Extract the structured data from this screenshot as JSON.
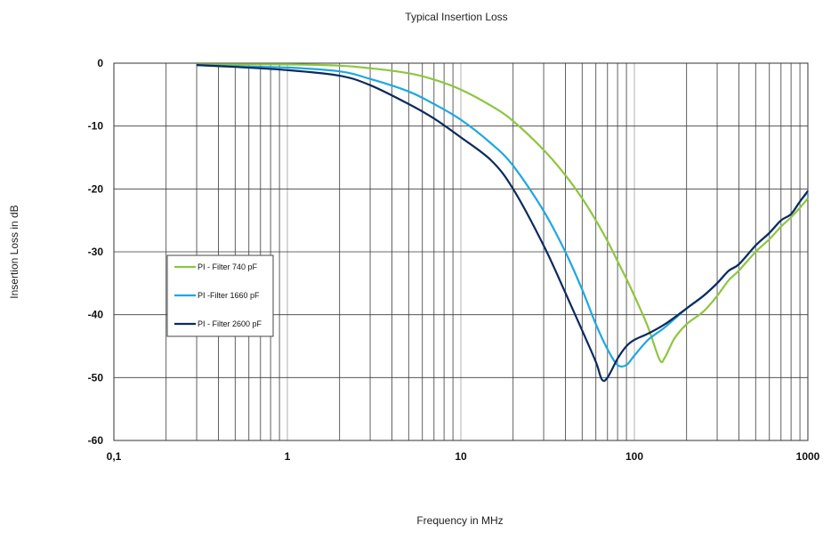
{
  "chart_data": {
    "type": "line",
    "title": "Typical Insertion Loss",
    "xlabel": "Frequency in MHz",
    "ylabel": "Insertion Loss in dB",
    "x_scale": "log",
    "xlim": [
      0.1,
      1000
    ],
    "ylim": [
      -60,
      0
    ],
    "x_ticks": [
      {
        "value": 0.1,
        "label": "0,1"
      },
      {
        "value": 1,
        "label": "1"
      },
      {
        "value": 10,
        "label": "10"
      },
      {
        "value": 100,
        "label": "100"
      },
      {
        "value": 1000,
        "label": "1000"
      }
    ],
    "y_ticks": [
      {
        "value": 0,
        "label": "0"
      },
      {
        "value": -10,
        "label": "-10"
      },
      {
        "value": -20,
        "label": "-20"
      },
      {
        "value": -30,
        "label": "-30"
      },
      {
        "value": -40,
        "label": "-40"
      },
      {
        "value": -50,
        "label": "-50"
      },
      {
        "value": -60,
        "label": "-60"
      }
    ],
    "grid": true,
    "legend_position": "left-middle",
    "series": [
      {
        "name": "PI - Filter 740 pF",
        "color": "#8dc63f",
        "points": [
          [
            0.3,
            -0.2
          ],
          [
            0.5,
            -0.2
          ],
          [
            1,
            -0.2
          ],
          [
            2,
            -0.4
          ],
          [
            3,
            -0.8
          ],
          [
            5,
            -1.6
          ],
          [
            7,
            -2.6
          ],
          [
            10,
            -4.2
          ],
          [
            15,
            -6.8
          ],
          [
            20,
            -9.2
          ],
          [
            30,
            -13.8
          ],
          [
            40,
            -17.8
          ],
          [
            50,
            -21.5
          ],
          [
            60,
            -25
          ],
          [
            70,
            -28.3
          ],
          [
            80,
            -31.5
          ],
          [
            90,
            -34.3
          ],
          [
            100,
            -37
          ],
          [
            120,
            -42
          ],
          [
            140,
            -47.2
          ],
          [
            150,
            -46.8
          ],
          [
            170,
            -43.8
          ],
          [
            200,
            -41.5
          ],
          [
            250,
            -39.5
          ],
          [
            300,
            -37
          ],
          [
            350,
            -34.5
          ],
          [
            400,
            -33
          ],
          [
            500,
            -30
          ],
          [
            600,
            -28
          ],
          [
            700,
            -26
          ],
          [
            800,
            -24.5
          ],
          [
            900,
            -23
          ],
          [
            1000,
            -21.5
          ]
        ]
      },
      {
        "name": "PI -Filter 1660 pF",
        "color": "#1ea7e1",
        "points": [
          [
            0.3,
            -0.3
          ],
          [
            0.5,
            -0.5
          ],
          [
            1,
            -0.7
          ],
          [
            2,
            -1.3
          ],
          [
            3,
            -2.5
          ],
          [
            5,
            -4.5
          ],
          [
            7,
            -6.5
          ],
          [
            10,
            -9
          ],
          [
            15,
            -12.8
          ],
          [
            20,
            -16.3
          ],
          [
            30,
            -23.5
          ],
          [
            40,
            -30
          ],
          [
            50,
            -36
          ],
          [
            60,
            -41.5
          ],
          [
            70,
            -45.5
          ],
          [
            80,
            -48
          ],
          [
            90,
            -48
          ],
          [
            100,
            -46.5
          ],
          [
            120,
            -44
          ],
          [
            150,
            -42
          ],
          [
            200,
            -39
          ],
          [
            250,
            -37
          ],
          [
            300,
            -35
          ],
          [
            350,
            -33
          ],
          [
            400,
            -32
          ],
          [
            500,
            -29
          ],
          [
            600,
            -27
          ],
          [
            700,
            -25
          ],
          [
            800,
            -24
          ],
          [
            900,
            -22
          ],
          [
            1000,
            -20.5
          ]
        ]
      },
      {
        "name": "PI - Filter 2600 pF",
        "color": "#0d2a5e",
        "points": [
          [
            0.3,
            -0.3
          ],
          [
            0.5,
            -0.6
          ],
          [
            1,
            -1.1
          ],
          [
            2,
            -2
          ],
          [
            3,
            -3.5
          ],
          [
            5,
            -6.5
          ],
          [
            7,
            -8.8
          ],
          [
            10,
            -11.8
          ],
          [
            15,
            -15.5
          ],
          [
            20,
            -20
          ],
          [
            30,
            -29
          ],
          [
            40,
            -36.5
          ],
          [
            50,
            -42.5
          ],
          [
            60,
            -47.5
          ],
          [
            65,
            -50.3
          ],
          [
            70,
            -50
          ],
          [
            80,
            -47
          ],
          [
            90,
            -45
          ],
          [
            100,
            -44
          ],
          [
            120,
            -43
          ],
          [
            150,
            -41.5
          ],
          [
            200,
            -39
          ],
          [
            250,
            -37
          ],
          [
            300,
            -35
          ],
          [
            350,
            -33
          ],
          [
            400,
            -32
          ],
          [
            500,
            -29
          ],
          [
            600,
            -27
          ],
          [
            700,
            -25
          ],
          [
            800,
            -24
          ],
          [
            900,
            -22
          ],
          [
            1000,
            -20.3
          ]
        ]
      }
    ]
  }
}
